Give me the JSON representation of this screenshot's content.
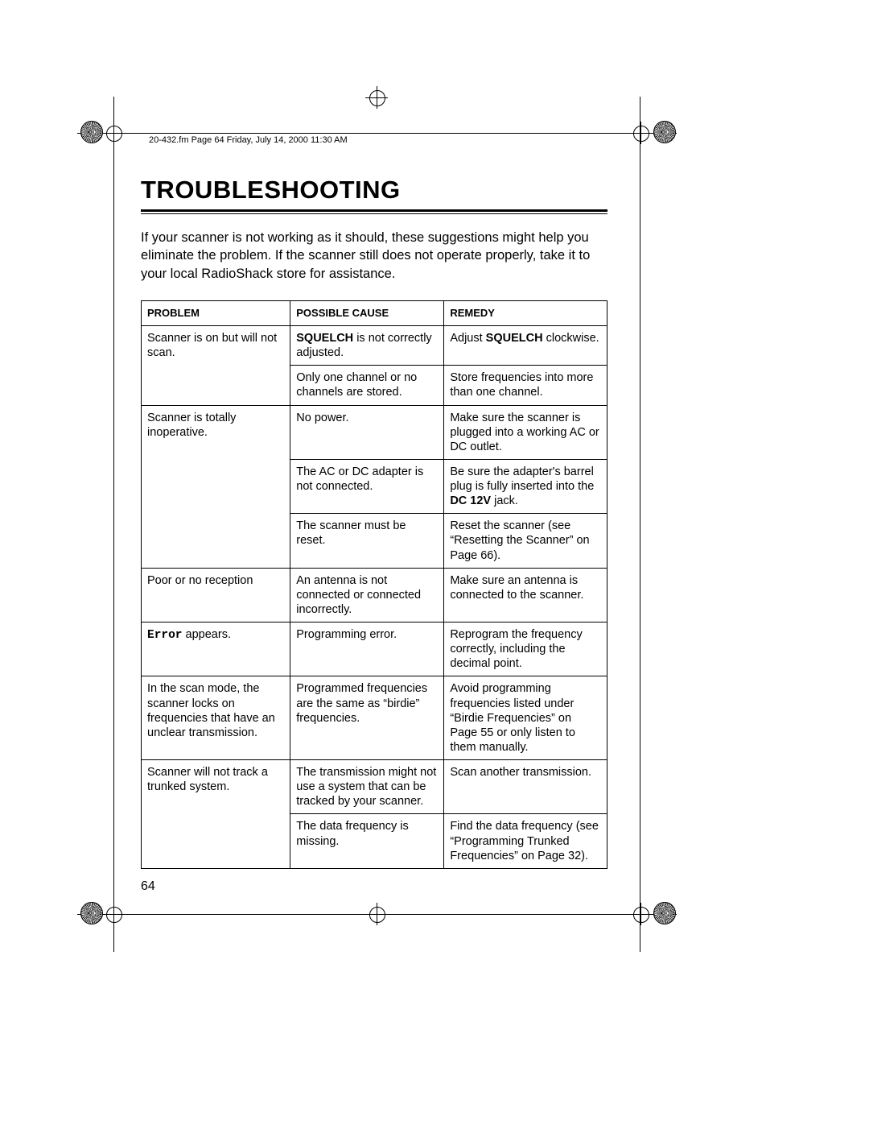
{
  "header_line": "20-432.fm  Page 64  Friday, July 14, 2000  11:30 AM",
  "title": "TROUBLESHOOTING",
  "intro": "If your scanner is not working as it should, these suggestions might help you eliminate the problem. If the scanner still does not operate properly, take it to your local RadioShack store for assistance.",
  "page_number": "64",
  "table": {
    "columns": [
      "Problem",
      "Possible Cause",
      "Remedy"
    ],
    "groups": [
      {
        "problem": "Scanner is on but will not scan.",
        "rows": [
          {
            "cause_html": "<span class='b'>SQUELCH</span> is not correctly adjusted.",
            "remedy_html": "Adjust <span class='b'>SQUELCH</span> clockwise."
          },
          {
            "cause_html": "Only one channel or no channels are stored.",
            "remedy_html": "Store frequencies into more than one channel."
          }
        ]
      },
      {
        "problem": "Scanner is totally inoperative.",
        "rows": [
          {
            "cause_html": "No power.",
            "remedy_html": "Make sure the scanner is plugged into a working AC or DC outlet."
          },
          {
            "cause_html": "The AC or DC adapter is not connected.",
            "remedy_html": "Be sure the adapter's barrel plug is fully inserted into the <span class='b'>DC 12V</span> jack."
          },
          {
            "cause_html": "The scanner must be reset.",
            "remedy_html": "Reset the scanner (see “Resetting the Scanner” on Page 66)."
          }
        ]
      },
      {
        "problem": "Poor or no reception",
        "rows": [
          {
            "cause_html": "An antenna is not connected or connected incorrectly.",
            "remedy_html": "Make sure an antenna is connected to the scanner."
          }
        ]
      },
      {
        "problem_html": "<span class='mono'>Error</span> appears.",
        "rows": [
          {
            "cause_html": "Programming error.",
            "remedy_html": "Reprogram the frequency correctly, including the decimal point."
          }
        ]
      },
      {
        "problem": "In the scan mode, the scanner locks on frequencies that have an unclear transmission.",
        "rows": [
          {
            "cause_html": "Programmed frequencies are the same as “birdie” frequencies.",
            "remedy_html": "Avoid programming frequencies listed under “Birdie Frequencies” on Page 55 or only listen to them manually."
          }
        ]
      },
      {
        "problem": "Scanner will not track a trunked system.",
        "rows": [
          {
            "cause_html": "The transmission might not use a system that can be tracked by your scanner.",
            "remedy_html": "Scan another transmission."
          },
          {
            "cause_html": "The data frequency is missing.",
            "remedy_html": "Find the data frequency (see “Programming Trunked Frequencies” on Page 32)."
          }
        ]
      }
    ]
  }
}
